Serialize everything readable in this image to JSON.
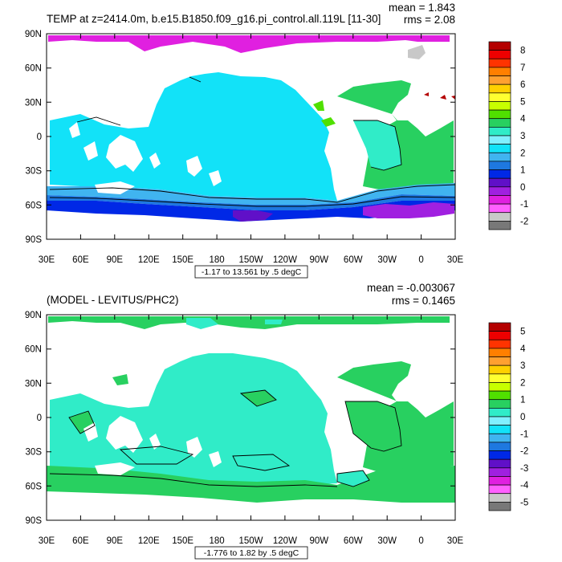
{
  "chart_data": [
    {
      "type": "contour-map",
      "title": "TEMP at z=2414.0m, b.e15.B1850.f09_g16.pi_control.all.119L [11-30]",
      "stats": {
        "mean": "mean = 1.843",
        "rms": "rms = 2.08"
      },
      "contour_info": "-1.17 to 13.561 by .5 degC",
      "xticks": [
        "30E",
        "60E",
        "90E",
        "120E",
        "150E",
        "180",
        "150W",
        "120W",
        "90W",
        "60W",
        "30W",
        "0",
        "30E"
      ],
      "yticks": [
        "90N",
        "60N",
        "30N",
        "0",
        "30S",
        "60S",
        "90S"
      ],
      "xlim": [
        30,
        390
      ],
      "ylim": [
        -90,
        90
      ],
      "colorbar": {
        "labels": [
          "8",
          "7",
          "6",
          "5",
          "4",
          "3",
          "2",
          "1",
          "0",
          "-1",
          "-2"
        ],
        "colors": [
          "#b40000",
          "#ee0000",
          "#ff3300",
          "#ff7f00",
          "#ffa030",
          "#ffd000",
          "#ffff30",
          "#c8ff00",
          "#50e000",
          "#28d060",
          "#30ecc8",
          "#80f0ff",
          "#12e2f8",
          "#40b4f0",
          "#1e78e0",
          "#0028e6",
          "#6010c8",
          "#a020e0",
          "#e020e0",
          "#ff60ff",
          "#c8c8c8",
          "#787878"
        ]
      }
    },
    {
      "type": "contour-map",
      "title": "(MODEL - LEVITUS/PHC2)",
      "stats": {
        "mean": "mean = -0.003067",
        "rms": "rms = 0.1465"
      },
      "contour_info": "-1.776 to 1.82 by .5 degC",
      "xticks": [
        "30E",
        "60E",
        "90E",
        "120E",
        "150E",
        "180",
        "150W",
        "120W",
        "90W",
        "60W",
        "30W",
        "0",
        "30E"
      ],
      "yticks": [
        "90N",
        "60N",
        "30N",
        "0",
        "30S",
        "60S",
        "90S"
      ],
      "xlim": [
        30,
        390
      ],
      "ylim": [
        -90,
        90
      ],
      "colorbar": {
        "labels": [
          "5",
          "4",
          "3",
          "2",
          "1",
          "0",
          "-1",
          "-2",
          "-3",
          "-4",
          "-5"
        ],
        "colors": [
          "#b40000",
          "#ee0000",
          "#ff3300",
          "#ff7f00",
          "#ffa030",
          "#ffd000",
          "#ffff30",
          "#c8ff00",
          "#50e000",
          "#28d060",
          "#30ecc8",
          "#80f0ff",
          "#12e2f8",
          "#40b4f0",
          "#1e78e0",
          "#0028e6",
          "#6010c8",
          "#a020e0",
          "#e020e0",
          "#ff60ff",
          "#c8c8c8",
          "#787878"
        ]
      }
    }
  ]
}
